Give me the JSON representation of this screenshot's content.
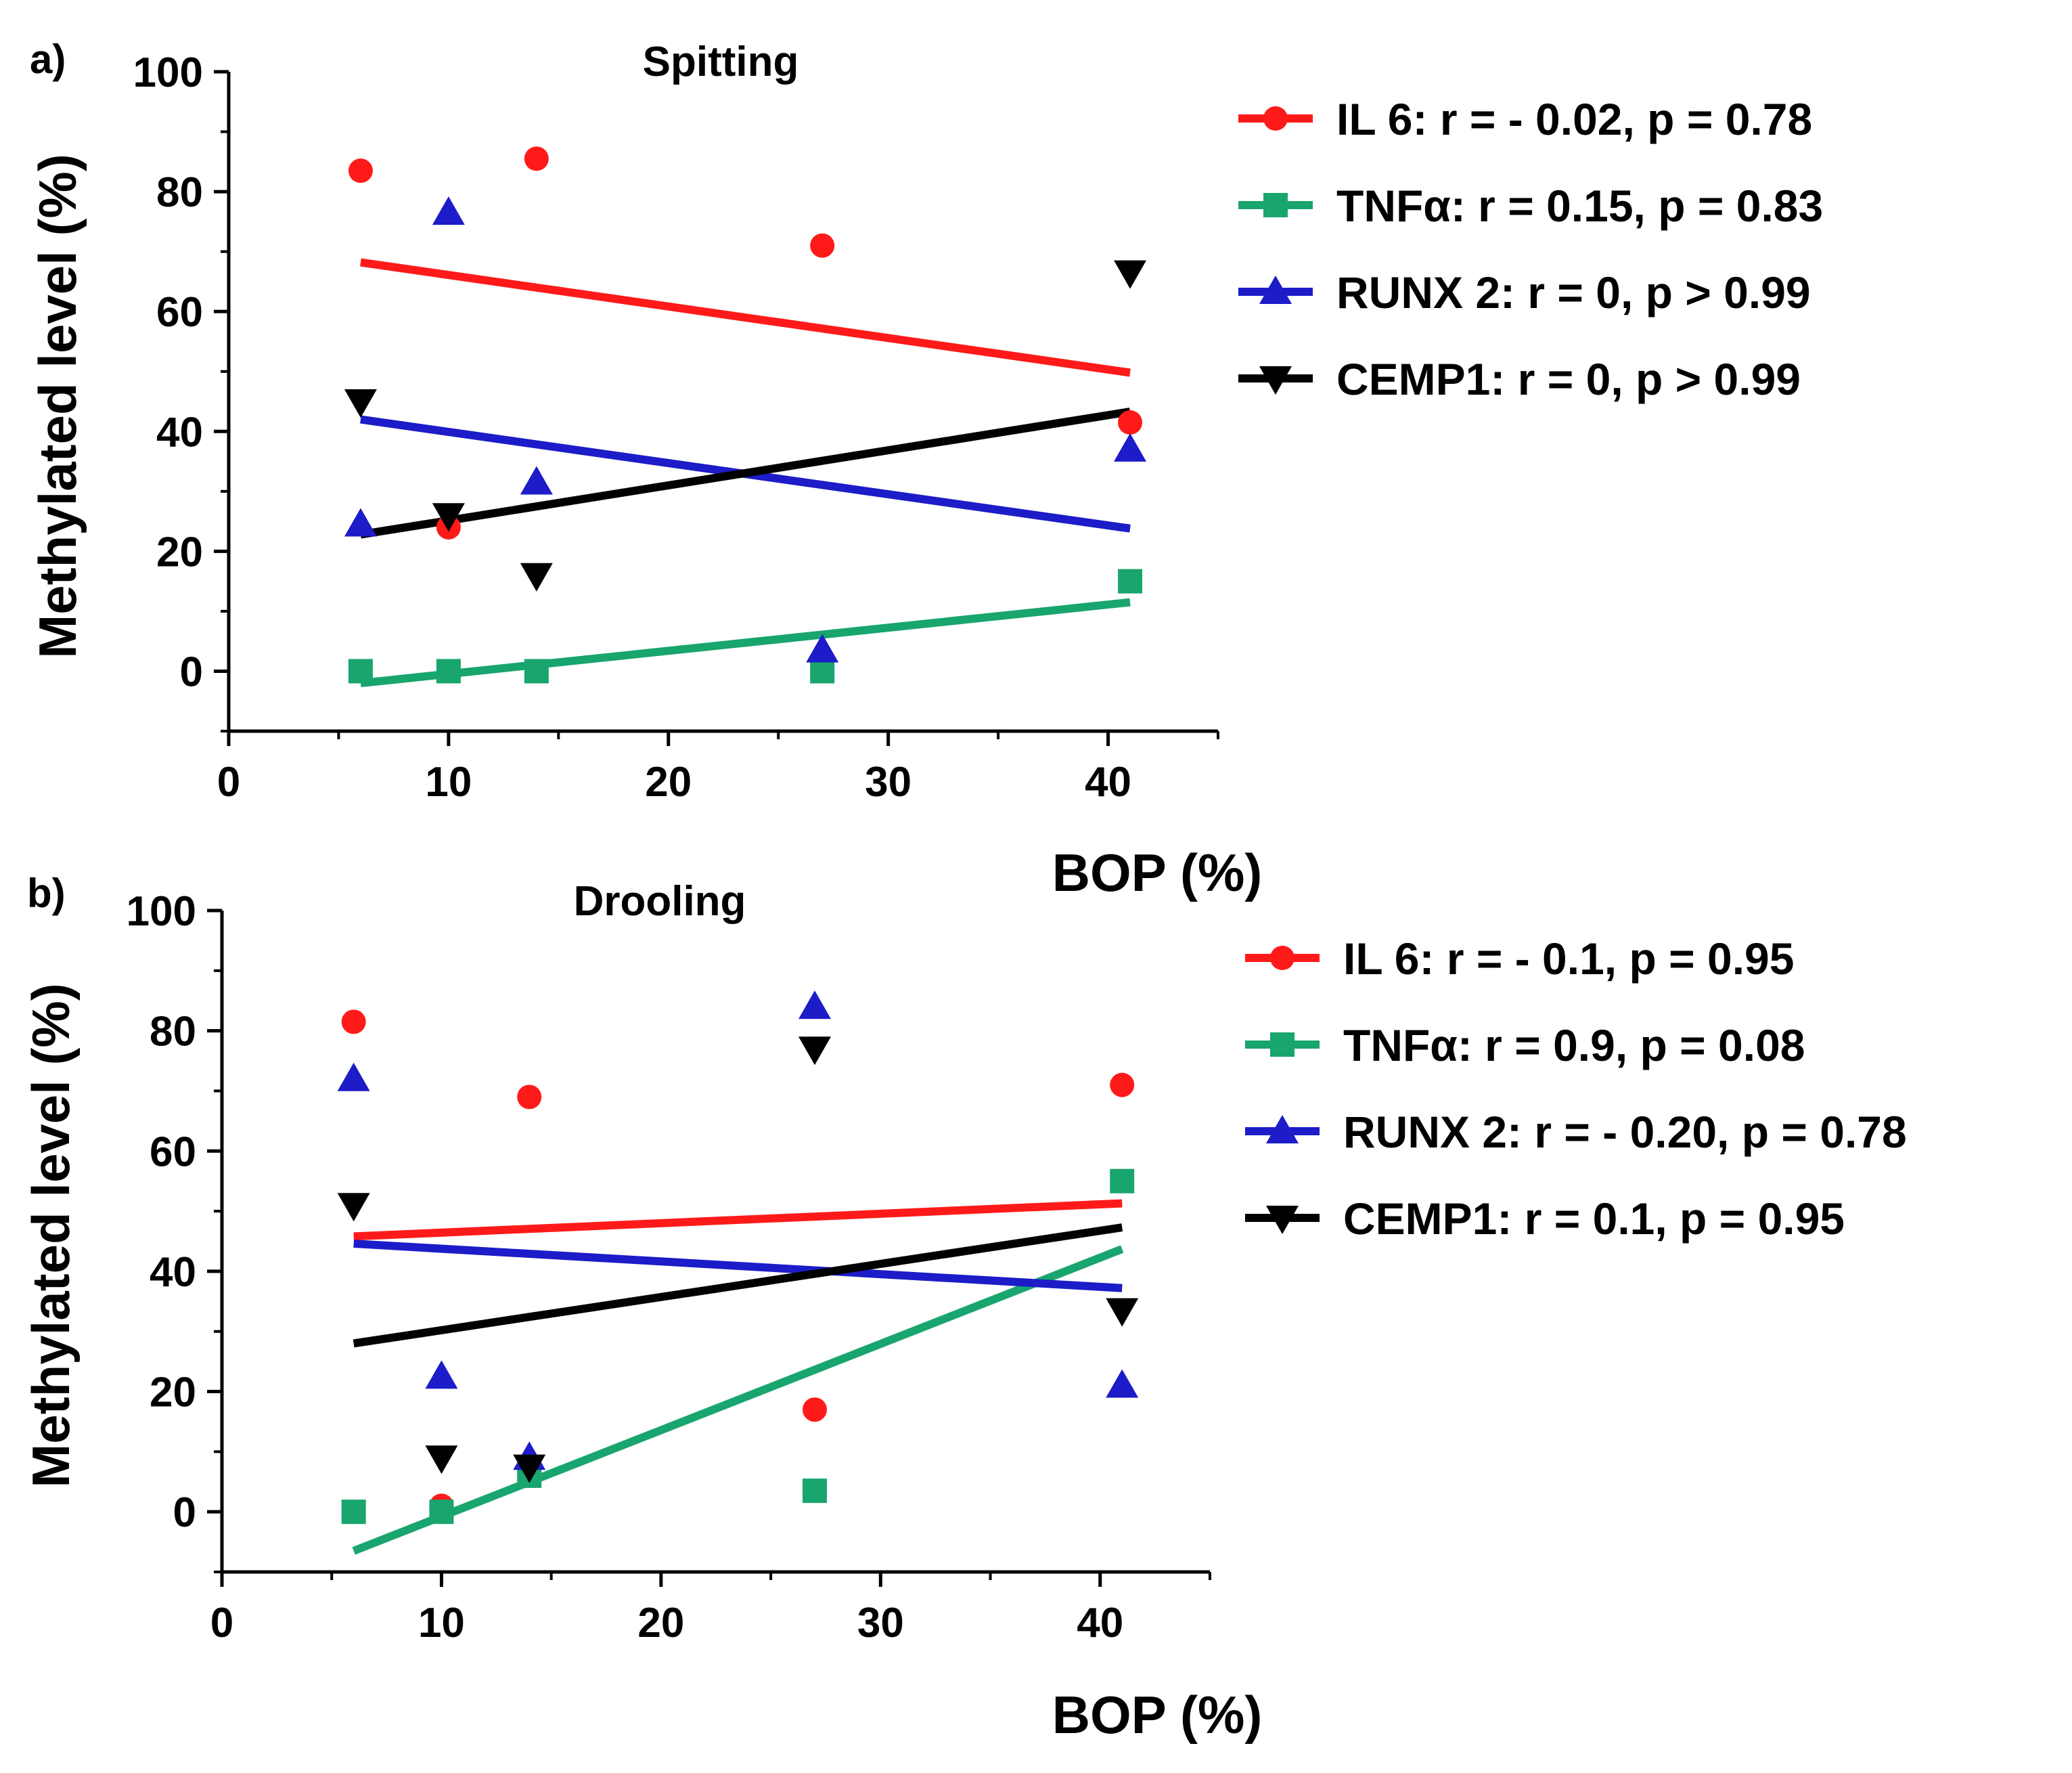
{
  "figure": {
    "panels": [
      "a",
      "b"
    ]
  },
  "chart_data": [
    {
      "panel_label": "a)",
      "type": "scatter",
      "title": "Spitting",
      "xlabel": "BOP (%)",
      "ylabel": "Methylated level (%)",
      "xlim": [
        0,
        45
      ],
      "ylim": [
        -10,
        100
      ],
      "xticks": [
        0,
        10,
        20,
        30,
        40
      ],
      "yticks": [
        0,
        20,
        40,
        60,
        80,
        100
      ],
      "grid": false,
      "legend_position": "right",
      "series": [
        {
          "name": "IL 6",
          "legend_label": "IL 6: r = - 0.02, p = 0.78",
          "color": "#ff1a1a",
          "marker": "circle",
          "points": [
            [
              6,
              83.5
            ],
            [
              10,
              24
            ],
            [
              14,
              85.5
            ],
            [
              27,
              71
            ],
            [
              41,
              41.5
            ]
          ],
          "fit": [
            [
              6,
              68.2
            ],
            [
              41,
              49.8
            ]
          ]
        },
        {
          "name": "TNFα",
          "legend_label": "TNFα: r = 0.15, p = 0.83",
          "color": "#19a56e",
          "marker": "square",
          "points": [
            [
              6,
              0
            ],
            [
              10,
              0
            ],
            [
              14,
              0
            ],
            [
              27,
              0
            ],
            [
              41,
              15
            ]
          ],
          "fit": [
            [
              6,
              -2
            ],
            [
              41,
              11.5
            ]
          ]
        },
        {
          "name": "RUNX 2",
          "legend_label": "RUNX 2: r = 0, p > 0.99",
          "color": "#1c1cc8",
          "marker": "triangle-up",
          "points": [
            [
              6,
              24.5
            ],
            [
              10,
              76.5
            ],
            [
              14,
              31.5
            ],
            [
              27,
              3.5
            ],
            [
              41,
              37
            ]
          ],
          "fit": [
            [
              6,
              42
            ],
            [
              41,
              23.8
            ]
          ]
        },
        {
          "name": "CEMP1",
          "legend_label": "CEMP1: r = 0, p > 0.99",
          "color": "#000000",
          "marker": "triangle-down",
          "points": [
            [
              6,
              45
            ],
            [
              10,
              26
            ],
            [
              14,
              16
            ],
            [
              41,
              66.5
            ]
          ],
          "fit": [
            [
              6,
              22.8
            ],
            [
              41,
              43.3
            ]
          ]
        }
      ]
    },
    {
      "panel_label": "b)",
      "type": "scatter",
      "title": "Drooling",
      "xlabel": "BOP (%)",
      "ylabel": "Methylated level (%)",
      "xlim": [
        0,
        45
      ],
      "ylim": [
        -10,
        100
      ],
      "xticks": [
        0,
        10,
        20,
        30,
        40
      ],
      "yticks": [
        0,
        20,
        40,
        60,
        80,
        100
      ],
      "grid": false,
      "legend_position": "right",
      "series": [
        {
          "name": "IL 6",
          "legend_label": "IL 6: r = - 0.1, p = 0.95",
          "color": "#ff1a1a",
          "marker": "circle",
          "points": [
            [
              6,
              81.5
            ],
            [
              10,
              1
            ],
            [
              14,
              69
            ],
            [
              27,
              17
            ],
            [
              41,
              71
            ]
          ],
          "fit": [
            [
              6,
              45.8
            ],
            [
              41,
              51.3
            ]
          ]
        },
        {
          "name": "TNFα",
          "legend_label": "TNFα: r = 0.9, p = 0.08",
          "color": "#19a56e",
          "marker": "square",
          "points": [
            [
              6,
              0
            ],
            [
              10,
              0
            ],
            [
              14,
              6
            ],
            [
              27,
              3.5
            ],
            [
              41,
              55
            ]
          ],
          "fit": [
            [
              6,
              -6.5
            ],
            [
              41,
              43.7
            ]
          ]
        },
        {
          "name": "RUNX 2",
          "legend_label": "RUNX 2: r = - 0.20, p = 0.78",
          "color": "#1c1cc8",
          "marker": "triangle-up",
          "points": [
            [
              6,
              72
            ],
            [
              10,
              22.5
            ],
            [
              14,
              9
            ],
            [
              27,
              84
            ],
            [
              41,
              21
            ]
          ],
          "fit": [
            [
              6,
              44.6
            ],
            [
              41,
              37.2
            ]
          ]
        },
        {
          "name": "CEMP1",
          "legend_label": "CEMP1: r = 0.1, p = 0.95",
          "color": "#000000",
          "marker": "triangle-down",
          "points": [
            [
              6,
              51
            ],
            [
              10,
              9
            ],
            [
              14,
              7.5
            ],
            [
              27,
              77
            ],
            [
              41,
              33.5
            ]
          ],
          "fit": [
            [
              6,
              28
            ],
            [
              41,
              47.3
            ]
          ]
        }
      ]
    }
  ]
}
